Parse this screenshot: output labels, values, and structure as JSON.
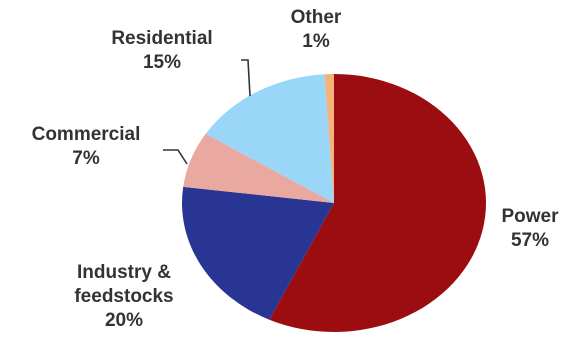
{
  "chart_data": {
    "type": "pie",
    "title": "",
    "unit": "%",
    "start_angle_deg": 0,
    "direction": "clockwise",
    "slices": [
      {
        "name": "Power",
        "lines": [
          "Power"
        ],
        "value": 57,
        "value_label": "57%",
        "color": "#9b0d10"
      },
      {
        "name": "Industry & feedstocks",
        "lines": [
          "Industry &",
          "feedstocks"
        ],
        "value": 20,
        "value_label": "20%",
        "color": "#283593"
      },
      {
        "name": "Commercial",
        "lines": [
          "Commercial"
        ],
        "value": 7,
        "value_label": "7%",
        "color": "#eaa9a0"
      },
      {
        "name": "Residential",
        "lines": [
          "Residential"
        ],
        "value": 15,
        "value_label": "15%",
        "color": "#99d6f7"
      },
      {
        "name": "Other",
        "lines": [
          "Other"
        ],
        "value": 1,
        "value_label": "1%",
        "color": "#f3b47c"
      }
    ],
    "legend": "none"
  }
}
